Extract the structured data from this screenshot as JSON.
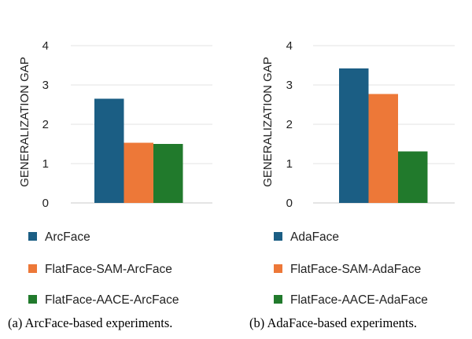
{
  "chart_data": [
    {
      "type": "bar",
      "ylabel": "GENERALIZATION GAP",
      "ylim": [
        0,
        4
      ],
      "yticks": [
        "0",
        "1",
        "2",
        "3",
        "4"
      ],
      "grid": true,
      "categories": [
        ""
      ],
      "series": [
        {
          "name": "ArcFace",
          "color": "#1b5e84",
          "values": [
            2.65
          ]
        },
        {
          "name": "FlatFace-SAM-ArcFace",
          "color": "#ed7838",
          "values": [
            1.53
          ]
        },
        {
          "name": "FlatFace-AACE-ArcFace",
          "color": "#217a2c",
          "values": [
            1.5
          ]
        }
      ],
      "legend_position": "bottom",
      "caption": "(a) ArcFace-based experiments."
    },
    {
      "type": "bar",
      "ylabel": "GENERALIZATION GAP",
      "ylim": [
        0,
        4
      ],
      "yticks": [
        "0",
        "1",
        "2",
        "3",
        "4"
      ],
      "grid": true,
      "categories": [
        ""
      ],
      "series": [
        {
          "name": "AdaFace",
          "color": "#1b5e84",
          "values": [
            3.42
          ]
        },
        {
          "name": "FlatFace-SAM-AdaFace",
          "color": "#ed7838",
          "values": [
            2.77
          ]
        },
        {
          "name": "FlatFace-AACE-AdaFace",
          "color": "#217a2c",
          "values": [
            1.31
          ]
        }
      ],
      "legend_position": "bottom",
      "caption": "(b) AdaFace-based experiments."
    }
  ]
}
